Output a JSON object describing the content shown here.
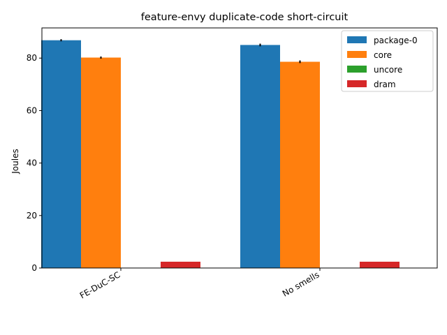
{
  "chart_data": {
    "type": "bar",
    "title": "feature-envy duplicate-code short-circuit",
    "xlabel": "",
    "ylabel": "Joules",
    "categories": [
      "FE-DuC-SC",
      "No smells"
    ],
    "series": [
      {
        "name": "package-0",
        "color": "#1f77b4",
        "values": [
          86.8,
          85.0
        ],
        "errors": [
          0.4,
          0.5
        ]
      },
      {
        "name": "core",
        "color": "#ff7f0e",
        "values": [
          80.2,
          78.6
        ],
        "errors": [
          0.4,
          0.5
        ]
      },
      {
        "name": "uncore",
        "color": "#2ca02c",
        "values": [
          0.0,
          0.0
        ],
        "errors": [
          0,
          0
        ]
      },
      {
        "name": "dram",
        "color": "#d62728",
        "values": [
          2.4,
          2.4
        ],
        "errors": [
          0,
          0
        ]
      }
    ],
    "ylim": [
      0,
      91.5
    ],
    "yticks": [
      0,
      20,
      40,
      60,
      80
    ],
    "grid": false,
    "legend_position": "top-right"
  }
}
